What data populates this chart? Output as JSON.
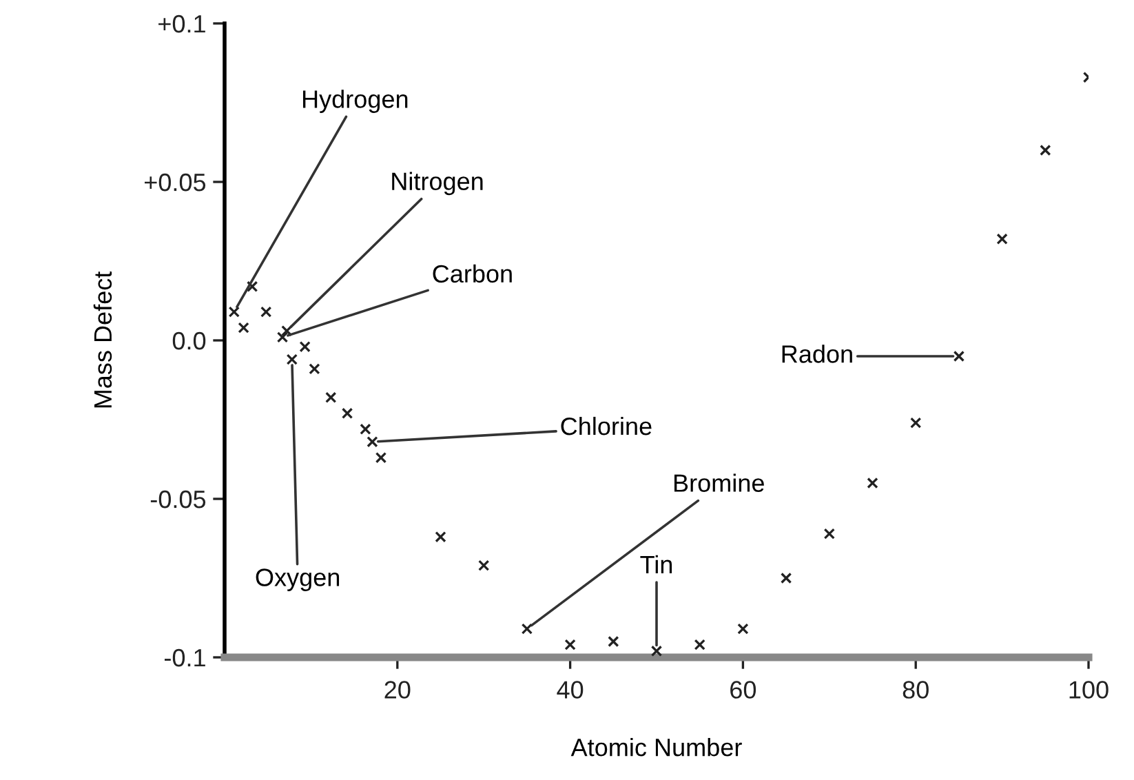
{
  "chart_data": {
    "type": "scatter",
    "xlabel": "Atomic Number",
    "ylabel": "Mass Defect",
    "x": [
      1.1,
      2.2,
      3.2,
      4.8,
      6.7,
      7.2,
      7.8,
      9.3,
      10.4,
      12.3,
      14.2,
      16.3,
      17.1,
      18.1,
      25,
      30,
      35,
      40,
      45,
      50,
      55,
      60,
      65,
      70,
      75,
      80,
      85,
      90,
      95,
      100
    ],
    "series": [
      {
        "color": "#222222",
        "values": [
          0.009,
          0.004,
          0.017,
          0.009,
          0.001,
          0.003,
          -0.006,
          -0.002,
          -0.009,
          -0.018,
          -0.023,
          -0.028,
          -0.032,
          -0.037,
          -0.062,
          -0.071,
          -0.091,
          -0.096,
          -0.095,
          -0.098,
          -0.096,
          -0.091,
          -0.075,
          -0.061,
          -0.045,
          -0.026,
          -0.005,
          0.032,
          0.06,
          0.083
        ]
      }
    ],
    "marker": "cross",
    "grid": false,
    "legend": false,
    "xlim": [
      0,
      100
    ],
    "xticks": [
      20,
      40,
      60,
      80,
      100
    ],
    "ylim": [
      -0.1,
      0.1
    ],
    "yticks": [
      {
        "value": -0.1,
        "label": "-0.1"
      },
      {
        "value": -0.05,
        "label": "-0.05"
      },
      {
        "value": 0,
        "label": "0.0"
      },
      {
        "value": 0.05,
        "label": "+0.05"
      },
      {
        "value": 0.1,
        "label": "+0.1"
      }
    ],
    "annotations": [
      {
        "text": "Hydrogen",
        "x": 1.1,
        "y": 0.009
      },
      {
        "text": "Nitrogen",
        "x": 7.2,
        "y": 0.003
      },
      {
        "text": "Carbon",
        "x": 6.7,
        "y": 0.001
      },
      {
        "text": "Chlorine",
        "x": 17.1,
        "y": -0.032
      },
      {
        "text": "Oxygen",
        "x": 7.8,
        "y": -0.006
      },
      {
        "text": "Bromine",
        "x": 35,
        "y": -0.091
      },
      {
        "text": "Tin",
        "x": 50,
        "y": -0.098
      },
      {
        "text": "Radon",
        "x": 85,
        "y": -0.005
      }
    ]
  }
}
